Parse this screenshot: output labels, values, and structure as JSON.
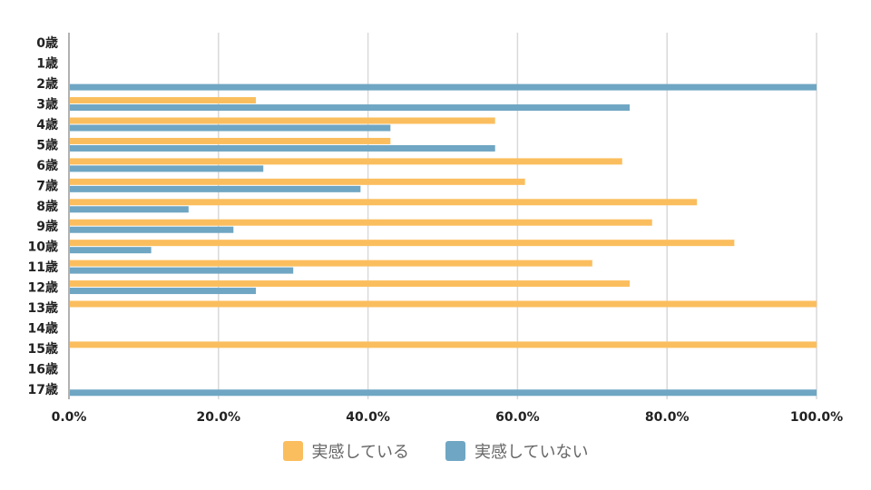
{
  "chart_data": {
    "type": "bar",
    "orientation": "horizontal",
    "categories": [
      "0歳",
      "1歳",
      "2歳",
      "3歳",
      "4歳",
      "5歳",
      "6歳",
      "7歳",
      "8歳",
      "9歳",
      "10歳",
      "11歳",
      "12歳",
      "13歳",
      "14歳",
      "15歳",
      "16歳",
      "17歳"
    ],
    "series": [
      {
        "name": "実感している",
        "color": "#FBBE5E",
        "values": [
          0,
          0,
          0,
          25,
          57,
          43,
          74,
          61,
          84,
          78,
          89,
          70,
          75,
          100,
          0,
          100,
          0,
          0
        ]
      },
      {
        "name": "実感していない",
        "color": "#6FA6C3",
        "values": [
          0,
          0,
          100,
          75,
          43,
          57,
          26,
          39,
          16,
          22,
          11,
          30,
          25,
          0,
          0,
          0,
          0,
          100
        ]
      }
    ],
    "x_ticks": [
      "0.0%",
      "20.0%",
      "40.0%",
      "60.0%",
      "80.0%",
      "100.0%"
    ],
    "xlim": [
      0,
      100
    ],
    "grid": true,
    "legend_position": "bottom"
  }
}
